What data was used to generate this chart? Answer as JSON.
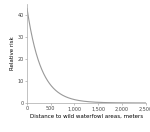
{
  "title": "",
  "xlabel": "Distance to wild waterfowl areas, meters",
  "ylabel": "Relative risk",
  "xlim": [
    0,
    2500
  ],
  "ylim": [
    0,
    45
  ],
  "yticks": [
    0,
    10,
    20,
    30,
    40
  ],
  "xticks": [
    0,
    500,
    1000,
    1500,
    2000,
    2500
  ],
  "xtick_labels": [
    "0",
    "500",
    "1,000",
    "1,500",
    "2,000",
    "2,500"
  ],
  "curve_color": "#999999",
  "curve_lw": 0.8,
  "decay_scale": 300,
  "y_start": 43,
  "background_color": "#ffffff",
  "xlabel_fontsize": 4.0,
  "ylabel_fontsize": 4.0,
  "tick_fontsize": 3.5,
  "spine_color": "#aaaaaa"
}
